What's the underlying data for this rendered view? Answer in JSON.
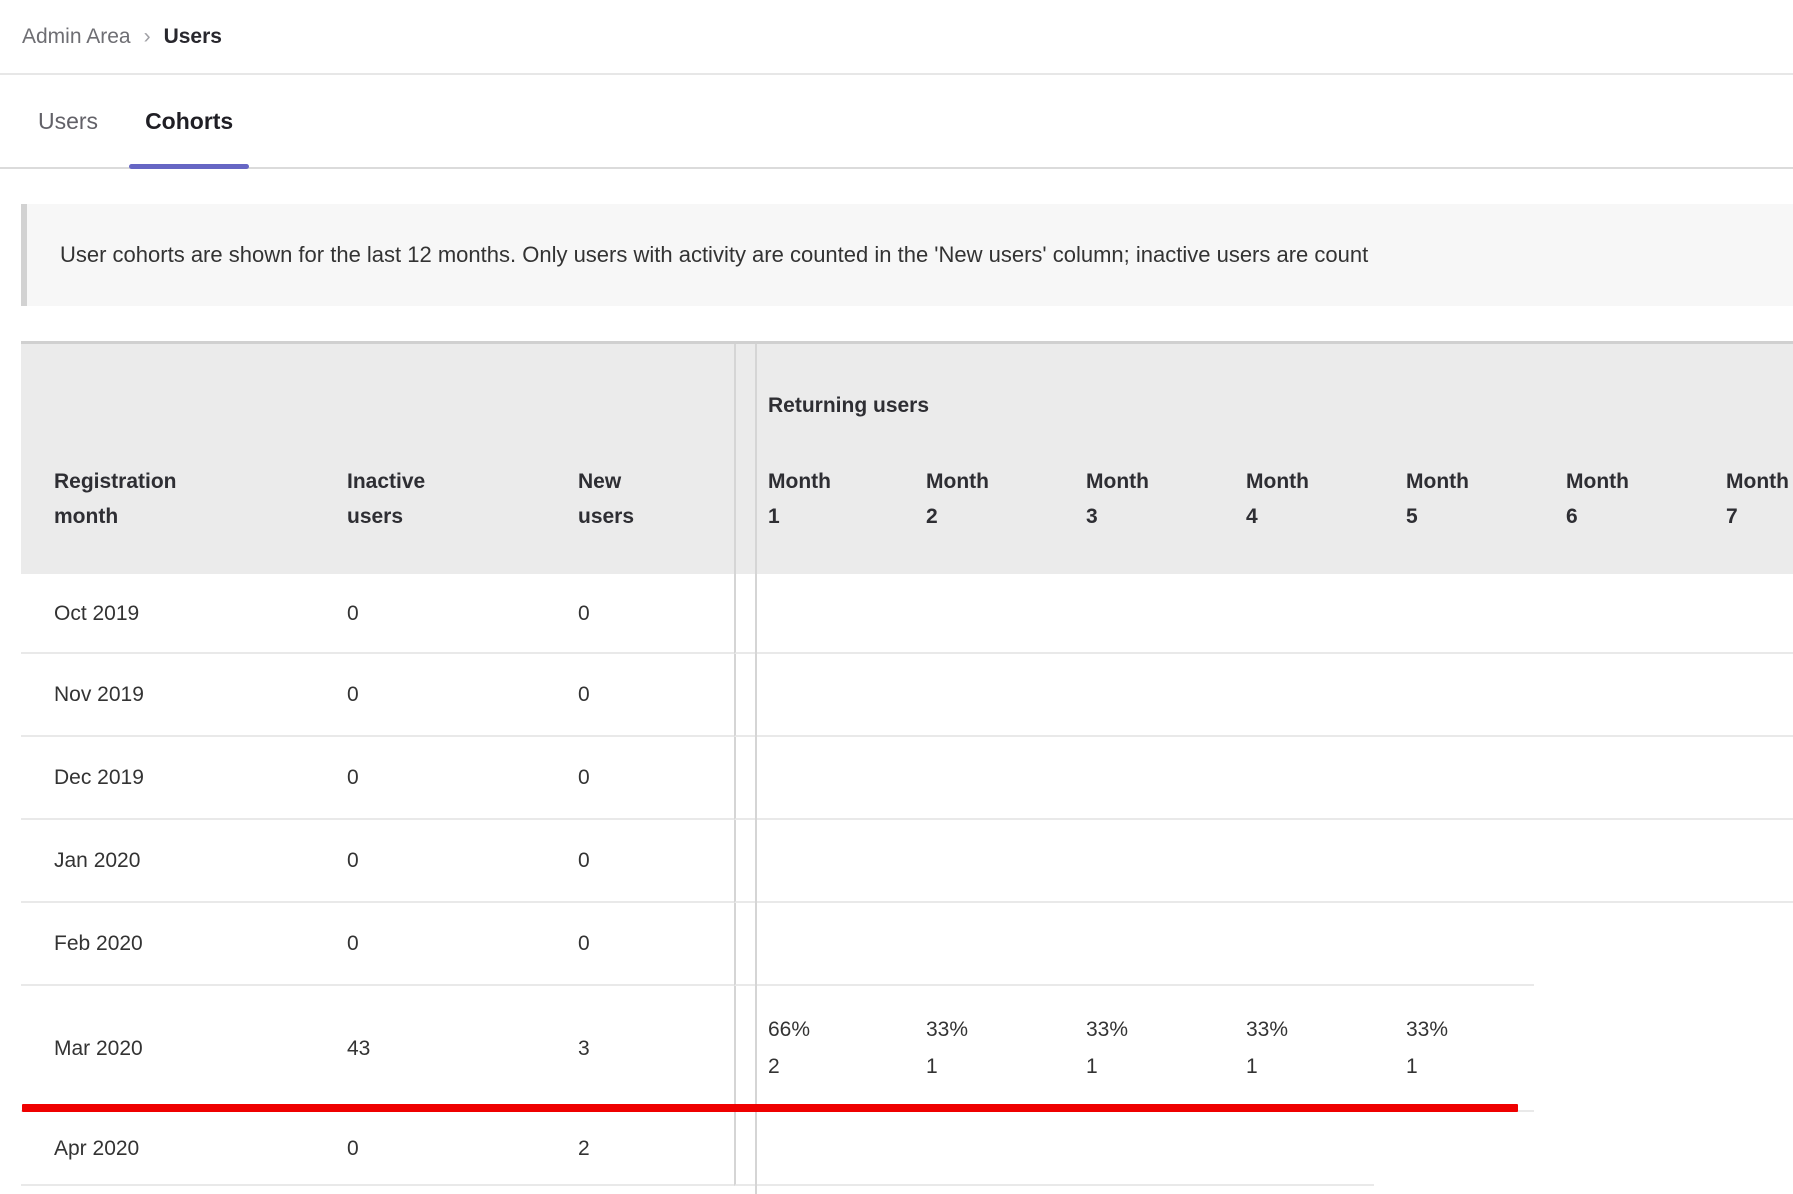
{
  "breadcrumb": {
    "separator": "›",
    "items": [
      {
        "label": "Admin Area"
      },
      {
        "label": "Users"
      }
    ]
  },
  "tabs": [
    {
      "label": "Users",
      "active": false
    },
    {
      "label": "Cohorts",
      "active": true
    }
  ],
  "banner": {
    "text": "User cohorts are shown for the last 12 months. Only users with activity are counted in the 'New users' column; inactive users are count"
  },
  "table": {
    "group_header": "Returning users",
    "columns": [
      "Registration\nmonth",
      "Inactive\nusers",
      "New\nusers"
    ],
    "month_columns": [
      "Month\n1",
      "Month\n2",
      "Month\n3",
      "Month\n4",
      "Month\n5",
      "Month\n6",
      "Month\n7"
    ],
    "rows": [
      {
        "registration_month": "Oct 2019",
        "inactive_users": "0",
        "new_users": "0",
        "returning": [
          "",
          "",
          "",
          "",
          "",
          "",
          ""
        ]
      },
      {
        "registration_month": "Nov 2019",
        "inactive_users": "0",
        "new_users": "0",
        "returning": [
          "",
          "",
          "",
          "",
          "",
          "",
          ""
        ]
      },
      {
        "registration_month": "Dec 2019",
        "inactive_users": "0",
        "new_users": "0",
        "returning": [
          "",
          "",
          "",
          "",
          "",
          "",
          ""
        ]
      },
      {
        "registration_month": "Jan 2020",
        "inactive_users": "0",
        "new_users": "0",
        "returning": [
          "",
          "",
          "",
          "",
          "",
          "",
          ""
        ]
      },
      {
        "registration_month": "Feb 2020",
        "inactive_users": "0",
        "new_users": "0",
        "returning": [
          "",
          "",
          "",
          "",
          "",
          "",
          ""
        ]
      },
      {
        "registration_month": "Mar 2020",
        "inactive_users": "43",
        "new_users": "3",
        "returning": [
          "66%\n2",
          "33%\n1",
          "33%\n1",
          "33%\n1",
          "33%\n1",
          "",
          ""
        ]
      },
      {
        "registration_month": "Apr 2020",
        "inactive_users": "0",
        "new_users": "2",
        "returning": [
          "",
          "",
          "",
          "",
          "",
          "",
          ""
        ]
      }
    ]
  },
  "annotation": {
    "description": "red underline below Mar 2020 row",
    "color": "#ef0000"
  },
  "colors": {
    "accent": "#6666c4",
    "red": "#ef0000",
    "header_bg": "#ebebeb"
  }
}
